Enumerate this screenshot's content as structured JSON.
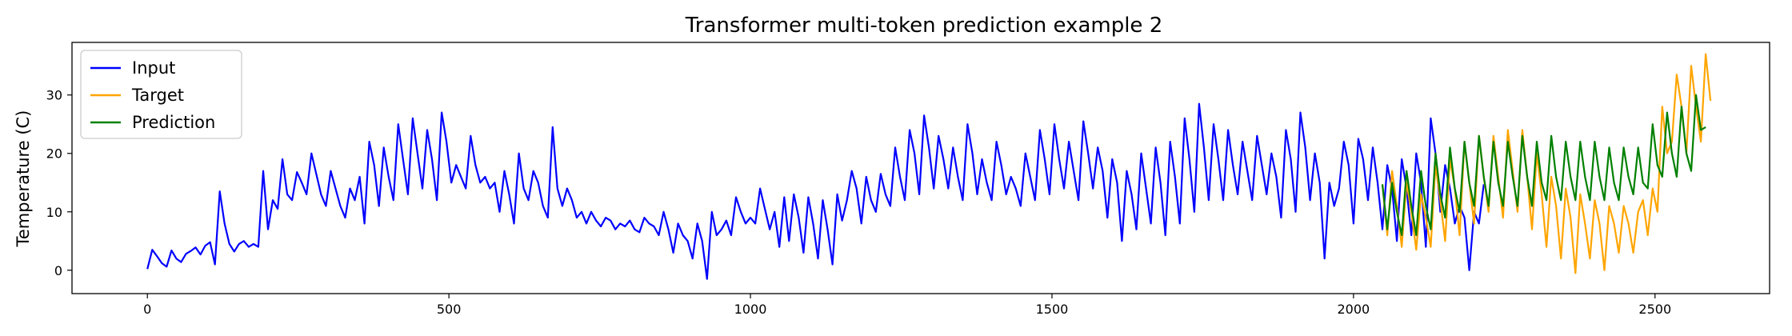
{
  "chart_data": {
    "type": "line",
    "title": "Transformer multi-token prediction example 2",
    "xlabel": "",
    "ylabel": "Temperature (C)",
    "xlim": [
      -125,
      2690
    ],
    "ylim": [
      -4,
      39
    ],
    "xticks": [
      0,
      500,
      1000,
      1500,
      2000,
      2500
    ],
    "yticks": [
      0,
      10,
      20,
      30
    ],
    "grid": false,
    "legend_position": "top-left",
    "series": [
      {
        "name": "Input",
        "color": "#0000ff",
        "x_start": 0,
        "x_step": 8,
        "values": [
          0.2,
          3.5,
          2.4,
          1.2,
          0.6,
          3.4,
          2.0,
          1.4,
          2.8,
          3.3,
          3.9,
          2.7,
          4.2,
          4.8,
          1.0,
          13.5,
          8.0,
          4.5,
          3.2,
          4.5,
          5.0,
          4.0,
          4.5,
          4.0,
          17.0,
          7.0,
          12.0,
          10.5,
          19.0,
          13.0,
          12.0,
          16.8,
          15.0,
          13.0,
          20.0,
          16.5,
          13.0,
          11.0,
          17.0,
          14.0,
          11.0,
          9.0,
          14.0,
          12.0,
          16.0,
          8.0,
          22.0,
          18.0,
          11.0,
          21.0,
          16.0,
          12.0,
          25.0,
          19.0,
          13.0,
          26.0,
          20.0,
          14.0,
          24.0,
          19.0,
          12.0,
          27.0,
          22.0,
          15.0,
          18.0,
          16.0,
          14.0,
          23.0,
          18.0,
          15.0,
          16.0,
          14.0,
          15.0,
          10.0,
          17.0,
          13.0,
          8.0,
          20.0,
          14.0,
          12.0,
          17.0,
          15.0,
          11.0,
          9.0,
          24.5,
          14.0,
          11.0,
          14.0,
          12.0,
          9.0,
          10.0,
          8.0,
          10.0,
          8.5,
          7.5,
          9.0,
          8.5,
          7.0,
          8.0,
          7.5,
          8.5,
          7.0,
          6.5,
          9.0,
          8.0,
          7.5,
          6.0,
          10.0,
          7.0,
          3.0,
          8.0,
          6.0,
          5.0,
          2.0,
          8.0,
          5.0,
          -1.5,
          10.0,
          6.0,
          7.0,
          8.5,
          6.0,
          12.5,
          10.0,
          8.0,
          9.0,
          8.0,
          14.0,
          10.5,
          7.0,
          10.0,
          4.0,
          12.5,
          5.0,
          13.0,
          9.0,
          3.0,
          12.5,
          8.0,
          2.0,
          12.0,
          7.0,
          1.0,
          13.0,
          8.5,
          12.0,
          17.0,
          14.0,
          8.0,
          16.0,
          12.0,
          10.0,
          16.5,
          13.0,
          11.0,
          21.0,
          16.0,
          12.0,
          24.0,
          20.0,
          13.0,
          26.5,
          21.0,
          14.0,
          23.0,
          19.0,
          14.0,
          21.0,
          16.0,
          12.0,
          25.0,
          20.0,
          13.0,
          19.0,
          15.0,
          12.0,
          22.0,
          18.0,
          13.0,
          16.0,
          14.0,
          11.0,
          20.0,
          16.0,
          12.0,
          24.0,
          19.0,
          13.0,
          25.0,
          19.0,
          14.0,
          22.0,
          17.0,
          12.0,
          25.5,
          20.0,
          14.0,
          21.0,
          17.0,
          9.0,
          19.0,
          15.0,
          5.0,
          17.0,
          13.0,
          7.0,
          20.0,
          14.0,
          8.0,
          21.0,
          15.0,
          6.0,
          22.0,
          16.0,
          8.0,
          26.0,
          19.0,
          10.0,
          28.5,
          21.0,
          12.0,
          25.0,
          19.0,
          12.0,
          24.0,
          18.0,
          13.0,
          22.0,
          17.0,
          12.0,
          23.0,
          18.0,
          13.0,
          20.0,
          16.0,
          9.0,
          24.0,
          19.0,
          10.0,
          27.0,
          21.0,
          12.0,
          20.0,
          15.0,
          2.0,
          15.0,
          11.0,
          14.0,
          22.0,
          18.0,
          8.0,
          22.5,
          19.0,
          12.0,
          21.0,
          15.0,
          7.0,
          18.0,
          14.0,
          5.0,
          19.0,
          14.0,
          6.0,
          20.0,
          15.0,
          4.0,
          26.0,
          20.0,
          10.0,
          18.0,
          14.0,
          8.0,
          11.0,
          9.0,
          0.0,
          10.0,
          8.0,
          14.7
        ]
      },
      {
        "name": "Target",
        "color": "#ffa500",
        "x_start": 2048,
        "x_step": 8,
        "values": [
          14.7,
          6.0,
          17.0,
          11.0,
          4.0,
          15.0,
          10.0,
          3.5,
          13.0,
          9.0,
          4.0,
          18.0,
          12.0,
          5.0,
          19.0,
          14.0,
          6.0,
          22.0,
          15.0,
          8.0,
          23.0,
          16.0,
          10.0,
          23.0,
          16.0,
          9.0,
          24.0,
          17.0,
          10.0,
          24.0,
          16.0,
          7.0,
          20.0,
          13.0,
          4.0,
          16.0,
          11.0,
          2.0,
          14.0,
          9.0,
          -0.5,
          13.0,
          8.0,
          2.0,
          12.0,
          8.0,
          0.0,
          11.0,
          8.0,
          3.0,
          11.0,
          8.0,
          3.0,
          10.0,
          12.0,
          6.0,
          14.0,
          10.0,
          28.0,
          20.0,
          22.0,
          33.5,
          28.0,
          20.0,
          35.0,
          28.0,
          22.0,
          37.0,
          29.0
        ]
      },
      {
        "name": "Prediction",
        "color": "#008000",
        "x_start": 2048,
        "x_step": 8,
        "values": [
          14.7,
          7.0,
          15.0,
          10.0,
          6.0,
          17.0,
          11.0,
          6.0,
          17.0,
          11.0,
          7.0,
          20.0,
          13.0,
          9.0,
          21.0,
          14.0,
          10.0,
          22.0,
          15.0,
          11.0,
          23.0,
          16.0,
          11.0,
          22.0,
          15.0,
          11.0,
          22.0,
          16.0,
          11.0,
          23.0,
          16.0,
          11.0,
          22.0,
          15.0,
          12.0,
          23.0,
          16.0,
          12.0,
          22.0,
          16.0,
          12.0,
          22.0,
          16.0,
          12.0,
          22.0,
          16.0,
          12.0,
          21.0,
          15.0,
          12.0,
          21.0,
          16.0,
          13.0,
          21.0,
          15.0,
          14.0,
          25.0,
          18.0,
          16.0,
          27.0,
          20.0,
          16.0,
          28.0,
          20.0,
          17.0,
          30.0,
          24.0,
          24.5
        ]
      }
    ]
  }
}
